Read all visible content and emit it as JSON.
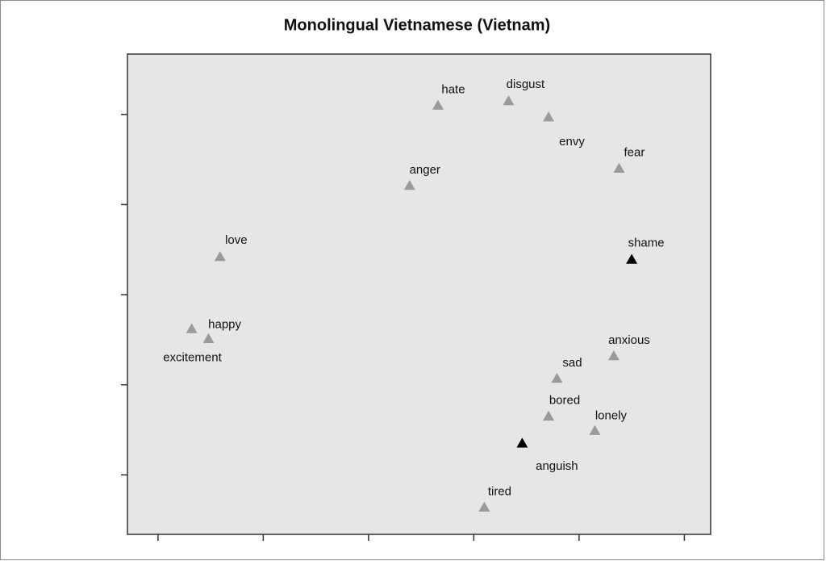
{
  "chart_data": {
    "type": "scatter",
    "title": "Monolingual Vietnamese (Vietnam)",
    "xlim": [
      -0.29,
      5.25
    ],
    "ylim": [
      -0.66,
      4.67
    ],
    "xticks": [
      0,
      1,
      2,
      3,
      4,
      5
    ],
    "yticks": [
      0,
      1,
      2,
      3,
      4
    ],
    "points": [
      {
        "label": "hate",
        "x": 2.66,
        "y": 4.1,
        "color": "#9a9a9a"
      },
      {
        "label": "disgust",
        "x": 3.33,
        "y": 4.15,
        "color": "#9a9a9a"
      },
      {
        "label": "envy",
        "x": 3.71,
        "y": 3.97,
        "color": "#9a9a9a"
      },
      {
        "label": "fear",
        "x": 4.38,
        "y": 3.4,
        "color": "#9a9a9a"
      },
      {
        "label": "anger",
        "x": 2.39,
        "y": 3.21,
        "color": "#9a9a9a"
      },
      {
        "label": "love",
        "x": 0.59,
        "y": 2.42,
        "color": "#9a9a9a"
      },
      {
        "label": "shame",
        "x": 4.5,
        "y": 2.39,
        "color": "#000000"
      },
      {
        "label": "happy",
        "x": 0.32,
        "y": 1.62,
        "color": "#9a9a9a"
      },
      {
        "label": "excitement",
        "x": 0.48,
        "y": 1.51,
        "color": "#9a9a9a"
      },
      {
        "label": "anxious",
        "x": 4.33,
        "y": 1.32,
        "color": "#9a9a9a"
      },
      {
        "label": "sad",
        "x": 3.79,
        "y": 1.07,
        "color": "#9a9a9a"
      },
      {
        "label": "bored",
        "x": 3.71,
        "y": 0.65,
        "color": "#9a9a9a"
      },
      {
        "label": "lonely",
        "x": 4.15,
        "y": 0.49,
        "color": "#9a9a9a"
      },
      {
        "label": "anguish",
        "x": 3.46,
        "y": 0.35,
        "color": "#000000"
      },
      {
        "label": "tired",
        "x": 3.1,
        "y": -0.36,
        "color": "#9a9a9a"
      }
    ]
  }
}
